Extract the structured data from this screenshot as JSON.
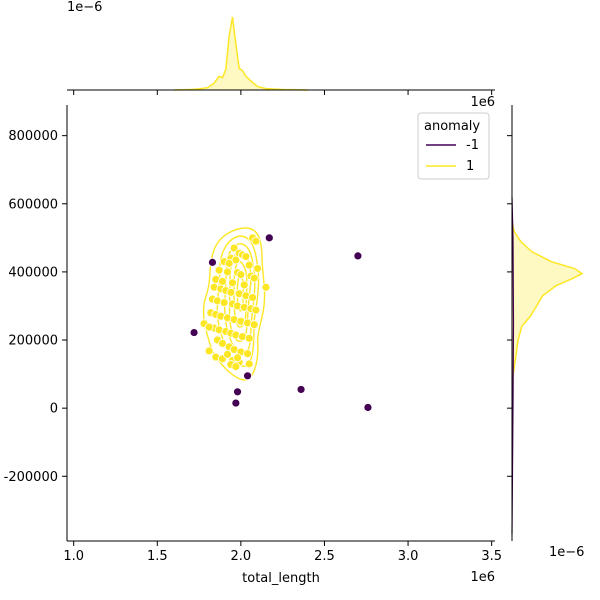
{
  "chart_data": {
    "type": "scatter",
    "xlabel": "total_length",
    "ylabel": "",
    "x_offset_label": "1e6",
    "y_offset_label": "1e6",
    "marg_x_offset_label": "1e−6",
    "marg_y_offset_label": "1e−6",
    "xlim": [
      0.96,
      3.52
    ],
    "ylim": [
      -390000,
      890000
    ],
    "x_ticks": [
      1.0,
      1.5,
      2.0,
      2.5,
      3.0,
      3.5
    ],
    "x_tick_labels": [
      "1.0",
      "1.5",
      "2.0",
      "2.5",
      "3.0",
      "3.5"
    ],
    "y_ticks": [
      -200000,
      0,
      200000,
      400000,
      600000,
      800000
    ],
    "y_tick_labels": [
      "-200000",
      "0",
      "200000",
      "400000",
      "600000",
      "800000"
    ],
    "legend": {
      "title": "anomaly",
      "placement": "top-right",
      "entries": [
        {
          "label": "-1",
          "color": "#440154"
        },
        {
          "label": "1",
          "color": "#fde725"
        }
      ]
    },
    "series": [
      {
        "name": "-1",
        "color": "#440154",
        "x": [
          1.83,
          2.17,
          2.7,
          1.72,
          2.04,
          1.98,
          1.97,
          2.36,
          2.76
        ],
        "y": [
          428000,
          500000,
          447000,
          222000,
          95000,
          48000,
          15000,
          55000,
          2000
        ]
      },
      {
        "name": "1",
        "color": "#fde725",
        "x": [
          2.07,
          2.09,
          1.96,
          1.99,
          2.01,
          2.03,
          1.94,
          1.97,
          1.9,
          1.93,
          2.05,
          2.1,
          1.87,
          1.92,
          1.98,
          2.0,
          2.06,
          2.08,
          1.85,
          1.89,
          1.95,
          2.02,
          1.84,
          1.88,
          1.91,
          1.94,
          1.99,
          2.03,
          2.07,
          1.83,
          1.86,
          1.9,
          1.95,
          1.98,
          2.02,
          2.06,
          2.09,
          2.15,
          1.82,
          1.85,
          1.88,
          1.92,
          1.96,
          2.0,
          2.04,
          2.08,
          1.8,
          1.84,
          1.87,
          1.91,
          1.94,
          1.97,
          2.01,
          2.05,
          1.78,
          1.81,
          1.86,
          1.89,
          1.93,
          1.96,
          2.0,
          2.04,
          1.85,
          1.89,
          1.95,
          1.99,
          2.05,
          1.81,
          1.92,
          1.98,
          1.94,
          1.97
        ],
        "y": [
          500000,
          490000,
          470000,
          455000,
          450000,
          445000,
          440000,
          435000,
          430000,
          425000,
          420000,
          410000,
          405000,
          400000,
          398000,
          392000,
          388000,
          382000,
          378000,
          372000,
          368000,
          362000,
          355000,
          350000,
          345000,
          340000,
          336000,
          330000,
          325000,
          320000,
          315000,
          310000,
          306000,
          300000,
          296000,
          292000,
          288000,
          355000,
          280000,
          275000,
          270000,
          265000,
          260000,
          255000,
          250000,
          245000,
          240000,
          235000,
          230000,
          225000,
          220000,
          215000,
          210000,
          205000,
          248000,
          238000,
          200000,
          190000,
          180000,
          172000,
          165000,
          160000,
          150000,
          145000,
          140000,
          135000,
          130000,
          168000,
          158000,
          148000,
          128000,
          122000
        ]
      }
    ],
    "top_marginal_density": {
      "x": [
        1.6,
        1.7,
        1.75,
        1.8,
        1.84,
        1.87,
        1.89,
        1.91,
        1.93,
        1.95,
        1.97,
        1.99,
        2.01,
        2.03,
        2.06,
        2.1,
        2.15,
        2.25,
        2.4
      ],
      "y": [
        0.0,
        0.02,
        0.05,
        0.1,
        0.3,
        0.6,
        0.55,
        0.9,
        2.4,
        3.2,
        2.0,
        0.95,
        0.85,
        0.6,
        0.4,
        0.15,
        0.06,
        0.02,
        0.0
      ]
    },
    "right_marginal_density": {
      "y": [
        70000,
        100000,
        150000,
        200000,
        240000,
        270000,
        300000,
        330000,
        360000,
        380000,
        395000,
        410000,
        430000,
        460000,
        490000,
        520000,
        550000
      ],
      "density": [
        0.0,
        0.05,
        0.15,
        0.25,
        0.4,
        0.75,
        1.0,
        1.25,
        1.8,
        2.45,
        2.85,
        2.55,
        1.6,
        0.8,
        0.35,
        0.08,
        0.0
      ]
    }
  }
}
